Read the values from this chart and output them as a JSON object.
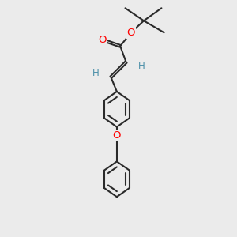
{
  "background_color": "#ebebeb",
  "bond_color": "#2a2a2a",
  "bond_width": 1.5,
  "O_color": "#ff0000",
  "H_color": "#4a8fa8",
  "font_size_atom": 8.5,
  "figsize": [
    3.0,
    3.0
  ],
  "dpi": 100,
  "xlim": [
    0,
    10
  ],
  "ylim": [
    0,
    14
  ]
}
